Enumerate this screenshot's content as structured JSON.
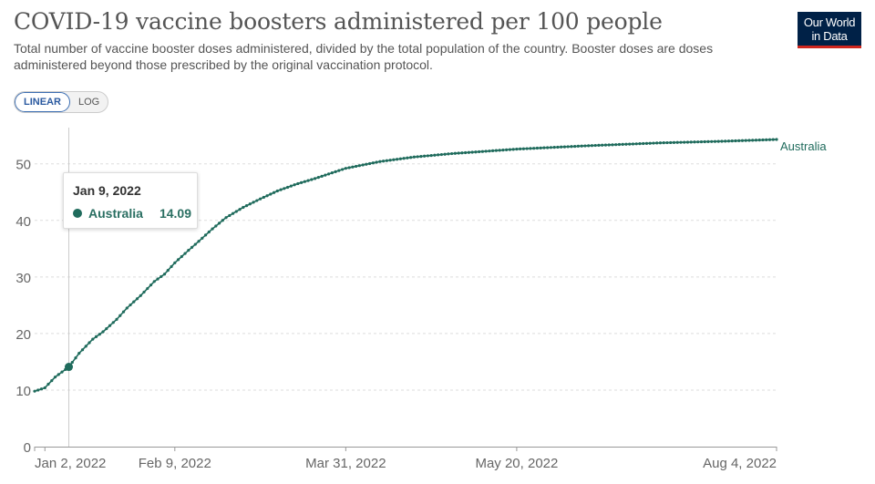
{
  "header": {
    "title": "COVID-19 vaccine boosters administered per 100 people",
    "subtitle": "Total number of vaccine booster doses administered, divided by the total population of the country. Booster doses are doses administered beyond those prescribed by the original vaccination protocol.",
    "logo_line1": "Our World",
    "logo_line2": "in Data"
  },
  "controls": {
    "linear_label": "LINEAR",
    "log_label": "LOG",
    "active": "linear"
  },
  "tooltip": {
    "date": "Jan 9, 2022",
    "series": "Australia",
    "value": "14.09"
  },
  "colors": {
    "series": "#1f6b5c",
    "logo_bg": "#002147",
    "logo_accent": "#ce261e"
  },
  "chart_data": {
    "type": "line",
    "title": "COVID-19 vaccine boosters administered per 100 people",
    "xlabel": "",
    "ylabel": "",
    "x_ticks": [
      "Jan 2, 2022",
      "Feb 9, 2022",
      "Mar 31, 2022",
      "May 20, 2022",
      "Aug 4, 2022"
    ],
    "y_ticks": [
      0,
      10,
      20,
      30,
      40,
      50
    ],
    "ylim": [
      0,
      54
    ],
    "xlim": [
      "2021-12-30",
      "2022-08-04"
    ],
    "grid": "horizontal dashed",
    "series": [
      {
        "name": "Australia",
        "points": [
          [
            "2021-12-30",
            9.8
          ],
          [
            "2022-01-02",
            10.4
          ],
          [
            "2022-01-05",
            12.3
          ],
          [
            "2022-01-09",
            14.09
          ],
          [
            "2022-01-12",
            16.5
          ],
          [
            "2022-01-16",
            19.0
          ],
          [
            "2022-01-19",
            20.3
          ],
          [
            "2022-01-23",
            22.5
          ],
          [
            "2022-01-26",
            24.5
          ],
          [
            "2022-01-30",
            26.7
          ],
          [
            "2022-02-03",
            29.2
          ],
          [
            "2022-02-06",
            30.5
          ],
          [
            "2022-02-09",
            32.5
          ],
          [
            "2022-02-13",
            34.7
          ],
          [
            "2022-02-16",
            36.3
          ],
          [
            "2022-02-20",
            38.5
          ],
          [
            "2022-02-24",
            40.5
          ],
          [
            "2022-03-01",
            42.3
          ],
          [
            "2022-03-06",
            43.8
          ],
          [
            "2022-03-11",
            45.2
          ],
          [
            "2022-03-17",
            46.5
          ],
          [
            "2022-03-22",
            47.4
          ],
          [
            "2022-03-31",
            49.2
          ],
          [
            "2022-04-10",
            50.4
          ],
          [
            "2022-04-20",
            51.2
          ],
          [
            "2022-05-01",
            51.8
          ],
          [
            "2022-05-20",
            52.6
          ],
          [
            "2022-06-10",
            53.2
          ],
          [
            "2022-07-01",
            53.7
          ],
          [
            "2022-07-20",
            54.0
          ],
          [
            "2022-08-04",
            54.3
          ]
        ]
      }
    ]
  }
}
